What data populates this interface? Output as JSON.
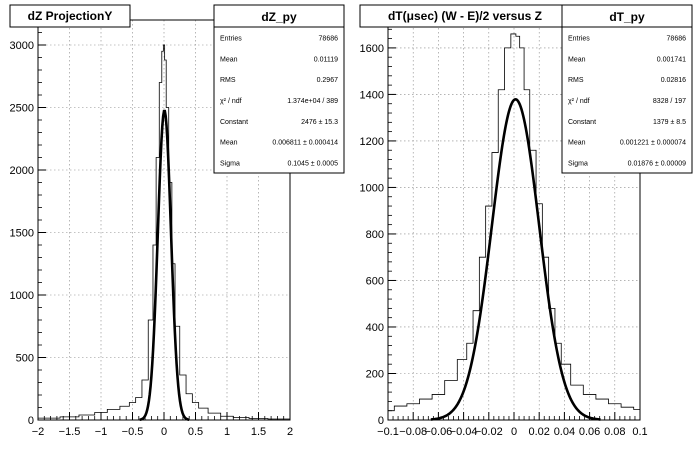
{
  "chart_data": [
    {
      "type": "histogram",
      "title": "dZ ProjectionY",
      "xlim": [
        -2,
        2
      ],
      "ylim": [
        0,
        3200
      ],
      "x_ticks": [
        -2,
        -1.5,
        -1,
        -0.5,
        0,
        0.5,
        1,
        1.5,
        2
      ],
      "x_tick_labels": [
        "−2",
        "−1.5",
        "−1",
        "−0.5",
        "0",
        "0.5",
        "1",
        "1.5",
        "2"
      ],
      "y_ticks": [
        0,
        500,
        1000,
        1500,
        2000,
        2500,
        3000
      ],
      "y_tick_labels": [
        "0",
        "500",
        "1000",
        "1500",
        "2000",
        "2500",
        "3000"
      ],
      "grid": true,
      "histogram": {
        "x": [
          -1.8,
          -1.5,
          -1.2,
          -1.0,
          -0.8,
          -0.6,
          -0.5,
          -0.4,
          -0.3,
          -0.2,
          -0.15,
          -0.1,
          -0.05,
          -0.02,
          0.0,
          0.02,
          0.05,
          0.1,
          0.15,
          0.2,
          0.3,
          0.4,
          0.5,
          0.6,
          0.8,
          1.0,
          1.2,
          1.5,
          1.8
        ],
        "y": [
          15,
          25,
          40,
          60,
          85,
          110,
          140,
          180,
          320,
          800,
          1400,
          2100,
          2700,
          2950,
          3000,
          2880,
          2500,
          1900,
          1250,
          750,
          360,
          210,
          140,
          95,
          55,
          30,
          20,
          12,
          8
        ]
      },
      "fit": {
        "type": "gaussian",
        "constant": 2476,
        "mean": 0.006811,
        "sigma": 0.1045
      },
      "stats_box": {
        "title": "dZ_py",
        "rows": [
          {
            "label": "Entries",
            "value": "78686"
          },
          {
            "label": "Mean",
            "value": "0.01119"
          },
          {
            "label": "RMS",
            "value": "0.2967"
          },
          {
            "label": "χ² / ndf",
            "value": "1.374e+04 / 389"
          },
          {
            "label": "Constant",
            "value": "2476 ± 15.3"
          },
          {
            "label": "Mean",
            "value": "0.006811 ± 0.000414"
          },
          {
            "label": "Sigma",
            "value": "0.1045 ± 0.0005"
          }
        ]
      }
    },
    {
      "type": "histogram",
      "title": "dT(μsec) (W - E)/2 versus Z",
      "xlim": [
        -0.1,
        0.1
      ],
      "ylim": [
        0,
        1720
      ],
      "x_ticks": [
        -0.1,
        -0.08,
        -0.06,
        -0.04,
        -0.02,
        0,
        0.02,
        0.04,
        0.06,
        0.08,
        0.1
      ],
      "x_tick_labels": [
        "−0.1",
        "−0.08",
        "−0.06",
        "−0.04",
        "−0.02",
        "0",
        "0.02",
        "0.04",
        "0.06",
        "0.08",
        "0.1"
      ],
      "y_ticks": [
        0,
        200,
        400,
        600,
        800,
        1000,
        1200,
        1400,
        1600
      ],
      "y_tick_labels": [
        "0",
        "200",
        "400",
        "600",
        "800",
        "1000",
        "1200",
        "1400",
        "1600"
      ],
      "grid": true,
      "histogram": {
        "x": [
          -0.1,
          -0.09,
          -0.08,
          -0.07,
          -0.06,
          -0.05,
          -0.04,
          -0.035,
          -0.03,
          -0.025,
          -0.02,
          -0.015,
          -0.01,
          -0.005,
          0.0,
          0.003,
          0.006,
          0.01,
          0.015,
          0.02,
          0.025,
          0.03,
          0.035,
          0.04,
          0.05,
          0.06,
          0.07,
          0.08,
          0.09,
          0.1
        ],
        "y": [
          40,
          60,
          70,
          90,
          110,
          170,
          260,
          330,
          470,
          700,
          920,
          1150,
          1420,
          1600,
          1660,
          1650,
          1600,
          1420,
          1160,
          930,
          700,
          480,
          330,
          240,
          150,
          110,
          90,
          70,
          55,
          45
        ]
      },
      "fit": {
        "type": "gaussian",
        "constant": 1379,
        "mean": 0.001221,
        "sigma": 0.01876
      },
      "stats_box": {
        "title": "dT_py",
        "rows": [
          {
            "label": "Entries",
            "value": "78686"
          },
          {
            "label": "Mean",
            "value": "0.001741"
          },
          {
            "label": "RMS",
            "value": "0.02816"
          },
          {
            "label": "χ² / ndf",
            "value": "8328 / 197"
          },
          {
            "label": "Constant",
            "value": "1379 ± 8.5"
          },
          {
            "label": "Mean",
            "value": "0.001221 ± 0.000074"
          },
          {
            "label": "Sigma",
            "value": "0.01876 ± 0.00009"
          }
        ]
      }
    }
  ]
}
